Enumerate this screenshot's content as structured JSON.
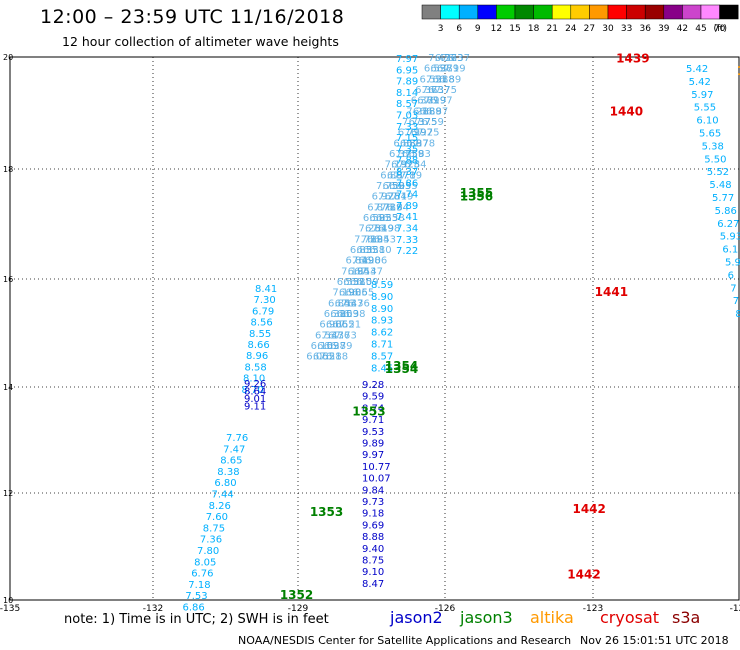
{
  "title": "12:00 – 23:59 UTC 11/16/2018",
  "subtitle": "12 hour collection of altimeter wave heights",
  "note": "note:  1) Time is in UTC;  2) SWH is in feet",
  "credit": "NOAA/NESDIS Center for Satellite Applications and Research",
  "timestamp": "Nov 26 15:01:51 UTC 2018",
  "satellites": [
    {
      "name": "jason2",
      "color": "#0000c8"
    },
    {
      "name": "jason3",
      "color": "#008000"
    },
    {
      "name": "altika",
      "color": "#ff9900"
    },
    {
      "name": "cryosat",
      "color": "#e00000"
    },
    {
      "name": "s3a",
      "color": "#8b0000"
    }
  ],
  "colorbar": {
    "unit": "(ft)",
    "ticks": [
      "3",
      "6",
      "9",
      "12",
      "15",
      "18",
      "21",
      "24",
      "27",
      "30",
      "33",
      "36",
      "39",
      "42",
      "45",
      "70"
    ],
    "colors": [
      "#808080",
      "#00ffff",
      "#00b0ff",
      "#0000ff",
      "#00cc00",
      "#008800",
      "#00bb00",
      "#ffff00",
      "#ffcc00",
      "#ff9900",
      "#ff0000",
      "#cc0000",
      "#990000",
      "#880088",
      "#cc44cc",
      "#ff88ff",
      "#000000"
    ]
  },
  "chart_data": {
    "type": "scatter",
    "xlim": [
      -135,
      -123.8
    ],
    "ylim": [
      10,
      20
    ],
    "xticks": [
      "-135",
      "-132",
      "-129",
      "-126",
      "-123",
      "-12"
    ],
    "yticks": [
      "20",
      "18",
      "18",
      "16",
      "14",
      "12",
      "10"
    ],
    "grid": true,
    "pass_labels": [
      {
        "text": "1439",
        "lon": -125.7,
        "lat": 19.9,
        "color": "#e00000"
      },
      {
        "text": "1440",
        "lon": -125.8,
        "lat": 18.92,
        "color": "#e00000"
      },
      {
        "text": "1441",
        "lon": -126.03,
        "lat": 15.6,
        "color": "#e00000"
      },
      {
        "text": "1442",
        "lon": -126.37,
        "lat": 11.6,
        "color": "#e00000"
      },
      {
        "text": "1442",
        "lon": -126.45,
        "lat": 10.4,
        "color": "#e00000"
      },
      {
        "text": "1355",
        "lon": -128.1,
        "lat": 17.42,
        "color": "#008000"
      },
      {
        "text": "1356",
        "lon": -128.1,
        "lat": 17.36,
        "color": "#008000"
      },
      {
        "text": "1354",
        "lon": -129.25,
        "lat": 14.24,
        "color": "#008000"
      },
      {
        "text": "1354",
        "lon": -129.25,
        "lat": 14.18,
        "color": "#008000"
      },
      {
        "text": "1353",
        "lon": -129.75,
        "lat": 13.4,
        "color": "#008000"
      },
      {
        "text": "1353",
        "lon": -130.4,
        "lat": 11.55,
        "color": "#008000"
      },
      {
        "text": "1352",
        "lon": -130.86,
        "lat": 10.02,
        "color": "#008000"
      },
      {
        "text": "13",
        "lon": -123.85,
        "lat": 19.67,
        "color": "#ff9900"
      }
    ],
    "tracks": [
      {
        "name": "A",
        "lon0": -127.2,
        "lat0": 19.92,
        "lon1": -126.9,
        "lat1": 19.67,
        "color": "#00b0ff",
        "values": [
          "7.97",
          "6.95",
          "7.89",
          "8.14",
          "8.57",
          "7.03",
          "7.33",
          "7.15",
          "7.35",
          "7.88",
          "8.37",
          "7.86",
          "7.74",
          "7.89",
          "7.41",
          "7.34",
          "7.33",
          "7.22"
        ]
      },
      {
        "name": "B",
        "lon0": -127.27,
        "lat0": 15.72,
        "lon1": -127.3,
        "lat1": 15.48,
        "color": "#00b0ff",
        "values": [
          "8.59",
          "8.90",
          "8.90",
          "8.93",
          "8.62",
          "8.71",
          "8.57",
          "8.45"
        ]
      },
      {
        "name": "C",
        "lon0": -127.3,
        "lat0": 13.74,
        "lon1": -127.28,
        "lat1": 13.48,
        "color": "#0000c8",
        "values": [
          "9.28",
          "9.59",
          "8.74",
          "9.71",
          "9.53",
          "9.89",
          "9.97",
          "10.77",
          "10.07",
          "9.84",
          "9.73",
          "9.18",
          "9.69",
          "8.88",
          "9.40",
          "8.75",
          "9.10",
          "8.47"
        ]
      },
      {
        "name": "D",
        "lon0": -129.5,
        "lat0": 15.64,
        "lon1": -129.65,
        "lat1": 15.43,
        "color": "#00b0ff",
        "values": [
          "8.41",
          "7.30",
          "6.79",
          "8.56",
          "8.55",
          "8.66",
          "8.96",
          "8.58",
          "8.10",
          "8.70"
        ]
      },
      {
        "name": "E",
        "lon0": -129.9,
        "lat0": 13.74,
        "lon1": -130.0,
        "lat1": 13.58,
        "color": "#0000c8",
        "values": [
          "9.26",
          "8.64",
          "9.01",
          "9.11"
        ]
      },
      {
        "name": "F",
        "lon0": -130.2,
        "lat0": 13.3,
        "lon1": -130.25,
        "lat1": 13.01,
        "color": "#00b0ff",
        "values": [
          "7.76",
          "7.47",
          "8.65",
          "8.38",
          "6.80",
          "7.44",
          "8.26",
          "7.60",
          "8.75",
          "7.36",
          "7.80",
          "8.05",
          "6.76",
          "7.18",
          "7.53",
          "6.86"
        ]
      },
      {
        "name": "G",
        "lon0": -123.9,
        "lat0": 19.95,
        "lon1": -123.9,
        "lat1": 19.7,
        "color": "#00b0ff",
        "values": [
          "5.42",
          "5.42",
          "5.97",
          "5.55",
          "6.10",
          "5.65",
          "5.38",
          "5.50",
          "5.52",
          "5.48",
          "5.77",
          "5.86",
          "6.27",
          "5.93",
          "6.1",
          "5.9",
          "6",
          "7",
          "7",
          "8"
        ]
      }
    ],
    "swath_lines": [
      {
        "lon0": -128.4,
        "lat0": 20,
        "lon1": -131.8,
        "lat1": 10,
        "color": "#4fa8e0"
      },
      {
        "lon0": -128.3,
        "lat0": 20,
        "lon1": -131.7,
        "lat1": 10,
        "color": "#4fa8e0"
      },
      {
        "lon0": -128.2,
        "lat0": 20,
        "lon1": -131.6,
        "lat1": 10,
        "color": "#4fa8e0"
      },
      {
        "lon0": -128.1,
        "lat0": 20,
        "lon1": -131.5,
        "lat1": 10,
        "color": "#4fa8e0"
      }
    ]
  }
}
